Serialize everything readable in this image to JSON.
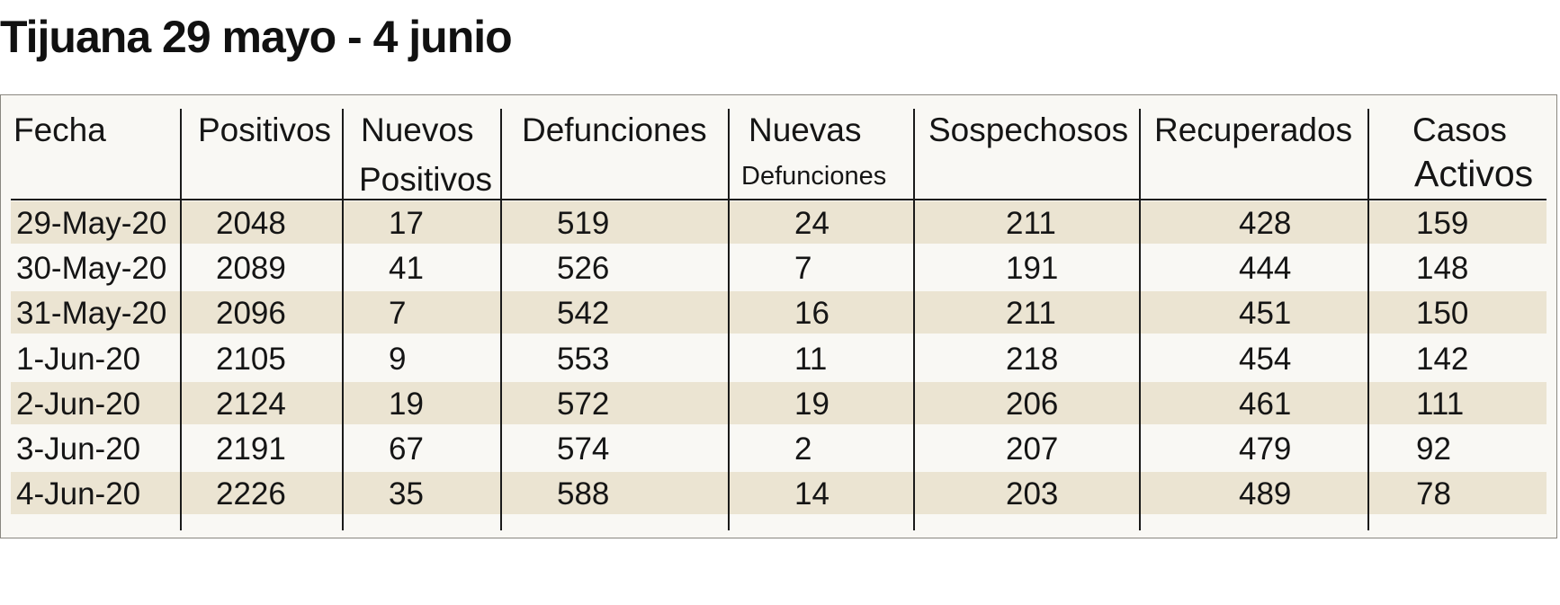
{
  "title": "Tijuana 29 mayo - 4 junio",
  "chart_data": {
    "type": "table",
    "title": "Tijuana 29 mayo - 4 junio",
    "columns": [
      [
        "Fecha"
      ],
      [
        "Positivos"
      ],
      [
        "Nuevos",
        "Positivos"
      ],
      [
        "Defunciones"
      ],
      [
        "Nuevas",
        "Defunciones"
      ],
      [
        "Sospechosos"
      ],
      [
        "Recuperados"
      ],
      [
        "Casos",
        "Activos"
      ]
    ],
    "rows": [
      [
        "29-May-20",
        "2048",
        "17",
        "519",
        "24",
        "211",
        "428",
        "159"
      ],
      [
        "30-May-20",
        "2089",
        "41",
        "526",
        "7",
        "191",
        "444",
        "148"
      ],
      [
        "31-May-20",
        "2096",
        "7",
        "542",
        "16",
        "211",
        "451",
        "150"
      ],
      [
        "1-Jun-20",
        "2105",
        "9",
        "553",
        "11",
        "218",
        "454",
        "142"
      ],
      [
        "2-Jun-20",
        "2124",
        "19",
        "572",
        "19",
        "206",
        "461",
        "111"
      ],
      [
        "3-Jun-20",
        "2191",
        "67",
        "574",
        "2",
        "207",
        "479",
        "92"
      ],
      [
        "4-Jun-20",
        "2226",
        "35",
        "588",
        "14",
        "203",
        "489",
        "78"
      ]
    ],
    "row_band_color": "#ebe4d2",
    "background_color": "#f9f8f4",
    "rule_color": "#1a1a1a"
  }
}
